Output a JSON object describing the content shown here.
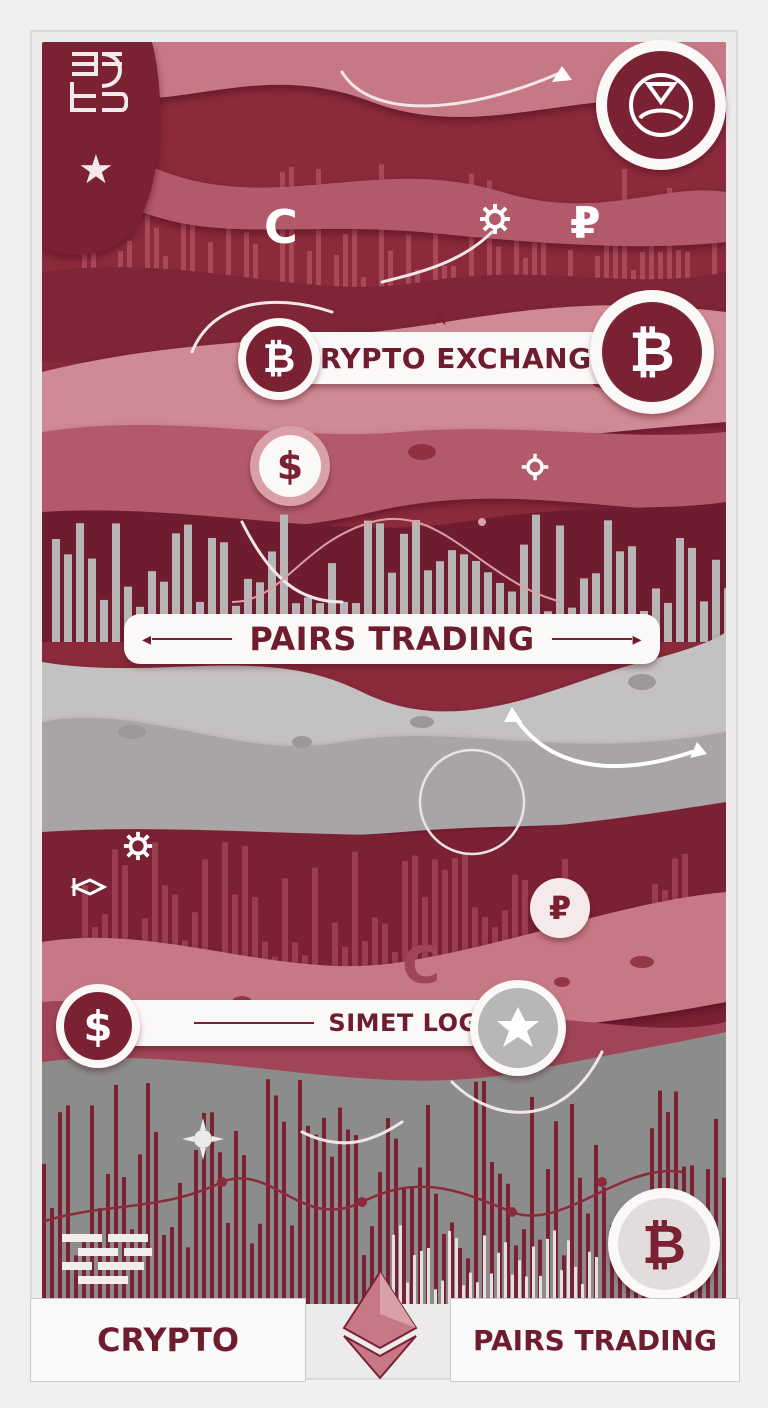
{
  "labels": {
    "crypto_exchange": "CRYPTO EXCHANGE",
    "pairs_trading_banner": "PAIRS TRADING",
    "simet_loge": "SIMET LOGE"
  },
  "footer": {
    "left": "CRYPTO",
    "right": "PAIRS TRADING"
  },
  "glyphs": {
    "bitcoin": "₿",
    "dollar": "$",
    "copyright": "C",
    "ruble": "₽",
    "star": "★",
    "arrow_left": "◂",
    "arrow_right": "▸"
  },
  "colors": {
    "burgundy": "#7a2233",
    "rose": "#c0737f",
    "pale_rose": "#d9a0a8",
    "grey": "#b8b6b7",
    "frame": "#f1f0f0"
  }
}
